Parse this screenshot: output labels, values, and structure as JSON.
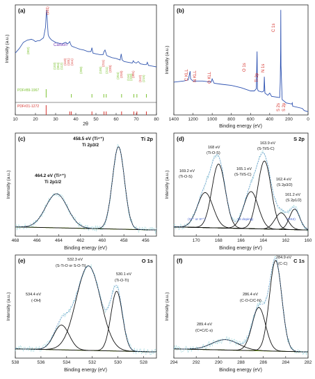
{
  "chart_data": [
    {
      "panel": "(a)",
      "type": "line",
      "xlabel": "2θ",
      "ylabel": "Intensity (a.u.)",
      "xlim": [
        10,
        80
      ],
      "ylim": [
        0,
        100
      ],
      "xticks": [
        "10",
        "20",
        "30",
        "40",
        "50",
        "60",
        "70",
        "80"
      ],
      "series": [
        {
          "color": "#3559b0",
          "x": [
            10,
            12,
            14,
            16,
            18,
            19,
            20,
            21,
            22,
            23,
            24,
            25,
            25.3,
            25.6,
            26,
            26.3,
            26.6,
            27,
            28,
            30,
            33,
            35,
            36,
            37,
            37.5,
            38,
            39,
            40,
            42,
            44,
            46,
            47.5,
            48,
            48.5,
            50,
            52,
            53.5,
            54,
            54.5,
            55,
            55.3,
            56,
            58,
            60,
            62,
            62.5,
            63,
            64,
            66,
            68,
            68.5,
            69,
            70,
            71,
            72,
            74,
            75,
            75.5,
            76,
            78,
            80
          ],
          "y": [
            38,
            44,
            52,
            55,
            56,
            55,
            53,
            54,
            54,
            56,
            58,
            72,
            88,
            94,
            74,
            62,
            60,
            58,
            55,
            52,
            50,
            52,
            50,
            53,
            49,
            47,
            46,
            45,
            43,
            42,
            40,
            40,
            45,
            38,
            37,
            36,
            36,
            40,
            42,
            38,
            35,
            34,
            32,
            31,
            29,
            37,
            29,
            27,
            26,
            25,
            28,
            26,
            25,
            27,
            24,
            23,
            23,
            26,
            22,
            21,
            20
          ]
        }
      ],
      "labels": {
        "carbon": "Carbon",
        "peak_101": "(101)",
        "peaks_green": [
          "(002)",
          "(103)",
          "(004)",
          "(112)",
          "(200)",
          "(105)",
          "(211)",
          "(204)",
          "(116)",
          "(220)",
          "(215)"
        ],
        "peaks_red": [
          "(110)",
          "(101)",
          "(111)",
          "(211)",
          "(220)",
          "(310)",
          "(301)",
          "(112)"
        ]
      },
      "ref_green": {
        "name": "PDF#89-1967",
        "positions": [
          25.3,
          37.8,
          48.0,
          53.9,
          55.1,
          62.7,
          68.8,
          70.3,
          75.0
        ]
      },
      "ref_red": {
        "name": "PDF#21-1272",
        "positions": [
          25.3,
          37.0,
          37.8,
          48.0,
          54.0,
          55.1,
          62.7,
          68.8,
          70.3,
          75.0
        ]
      }
    },
    {
      "panel": "(b)",
      "type": "line",
      "xlabel": "Binding energy (eV)",
      "ylabel": "Intensity (a.u.)",
      "xlim": [
        1400,
        0
      ],
      "ylim": [
        0,
        100
      ],
      "xticks": [
        "1400",
        "1200",
        "1000",
        "800",
        "600",
        "400",
        "200",
        "0"
      ],
      "series": [
        {
          "color": "#2a4fb0",
          "x": [
            1400,
            1300,
            1250,
            1230,
            1225,
            1200,
            1100,
            1010,
            1000,
            980,
            900,
            800,
            700,
            600,
            560,
            540,
            532,
            528,
            520,
            480,
            460,
            456,
            450,
            420,
            400,
            380,
            300,
            295,
            290,
            286,
            284,
            282,
            270,
            240,
            230,
            170,
            165,
            160,
            60,
            40,
            0
          ],
          "y": [
            30,
            31,
            32,
            40,
            33,
            31,
            31,
            30,
            33,
            29,
            28,
            27,
            25,
            22,
            22,
            24,
            58,
            24,
            22,
            21,
            22,
            35,
            20,
            18,
            20,
            17,
            16,
            16,
            30,
            60,
            96,
            45,
            14,
            12,
            11,
            10,
            11,
            8,
            6,
            4,
            3
          ]
        }
      ],
      "peak_labels": [
        "C KLL",
        "N KLL",
        "O KLL",
        "O 1s",
        "Ti 2p",
        "N 1s",
        "C 1s",
        "S 2s",
        "S 2p"
      ]
    },
    {
      "panel": "(c)",
      "type": "line",
      "title": "Ti 2p",
      "xlabel": "Binding energy (eV)",
      "ylabel": "Intensity (a.u.)",
      "xlim": [
        468,
        455
      ],
      "ylim": [
        0,
        100
      ],
      "xticks": [
        "468",
        "466",
        "464",
        "462",
        "460",
        "458",
        "456"
      ],
      "peaks": [
        {
          "center": 458.5,
          "height": 80,
          "width": 0.55
        },
        {
          "center": 464.2,
          "height": 33,
          "width": 1.0
        }
      ],
      "annotations": [
        "458.5 eV (Ti⁴⁺)",
        "Ti 2p3/2",
        "464.2 eV (Ti⁴⁺)",
        "Ti 2p1/2"
      ]
    },
    {
      "panel": "(d)",
      "type": "line",
      "title": "S 2p",
      "xlabel": "Binding energy (eV)",
      "ylabel": "Intensity (a.u.)",
      "xlim": [
        172,
        160
      ],
      "ylim": [
        0,
        100
      ],
      "xticks": [
        "170",
        "168",
        "166",
        "164",
        "162",
        "160"
      ],
      "peaks": [
        {
          "center": 169.2,
          "height": 34,
          "width": 0.7
        },
        {
          "center": 168.0,
          "height": 62,
          "width": 0.6
        },
        {
          "center": 165.1,
          "height": 36,
          "width": 0.65
        },
        {
          "center": 163.9,
          "height": 66,
          "width": 0.6
        },
        {
          "center": 162.4,
          "height": 16,
          "width": 0.55
        },
        {
          "center": 161.2,
          "height": 20,
          "width": 0.45
        }
      ],
      "annotations": [
        "168 eV",
        "(Ti-O-S)",
        "169.2 eV",
        "(Ti-O-S)",
        "165.1 eV",
        "(S-Ti/S-C)",
        "163.9 eV",
        "(S-Ti/S-C)",
        "162.4 eV",
        "(S 2p3/2)",
        "161.2 eV",
        "(S 2p1/2)",
        "(S⁴⁺ or S⁶⁺)",
        "(S doping)",
        "(TiS2)"
      ]
    },
    {
      "panel": "(e)",
      "type": "line",
      "title": "O 1s",
      "xlabel": "Binding energy (eV)",
      "ylabel": "Intensity (a.u.)",
      "xlim": [
        538,
        527
      ],
      "ylim": [
        0,
        100
      ],
      "xticks": [
        "538",
        "536",
        "534",
        "532",
        "530",
        "528"
      ],
      "peaks": [
        {
          "center": 532.3,
          "height": 82,
          "width": 0.95
        },
        {
          "center": 530.1,
          "height": 58,
          "width": 0.45
        },
        {
          "center": 534.4,
          "height": 24,
          "width": 0.6
        }
      ],
      "annotations": [
        "532.3 eV",
        "(S-Ti-O or S-O-Ti)",
        "530.1 eV",
        "(Ti-O-Ti)",
        "534.4 eV",
        "(-OH)"
      ]
    },
    {
      "panel": "(f)",
      "type": "line",
      "title": "C 1s",
      "xlabel": "Binding energy (eV)",
      "ylabel": "Intensity (a.u.)",
      "xlim": [
        294,
        282
      ],
      "ylim": [
        0,
        100
      ],
      "xticks": [
        "294",
        "292",
        "290",
        "288",
        "286",
        "284",
        "282"
      ],
      "peaks": [
        {
          "center": 284.9,
          "height": 88,
          "width": 0.55
        },
        {
          "center": 286.4,
          "height": 42,
          "width": 0.6
        },
        {
          "center": 289.4,
          "height": 10,
          "width": 1.2
        }
      ],
      "annotations": [
        "284.9 eV",
        "(C-C)",
        "286.4 eV",
        "(C-O-C/C-N)",
        "289.4 eV",
        "(C=C/C-s)"
      ]
    }
  ],
  "colors": {
    "sum": "#4a7ec0",
    "fit": "#111111",
    "background": "#7fa825",
    "raw": "#8fd0d6",
    "xrd": "#3559b0",
    "xps_survey": "#2a4fb0",
    "ref_green": "#7dc232",
    "ref_red": "#d6342e",
    "label_red": "#d6342e",
    "label_green": "#7dc232",
    "label_blue": "#3d5bd0"
  }
}
